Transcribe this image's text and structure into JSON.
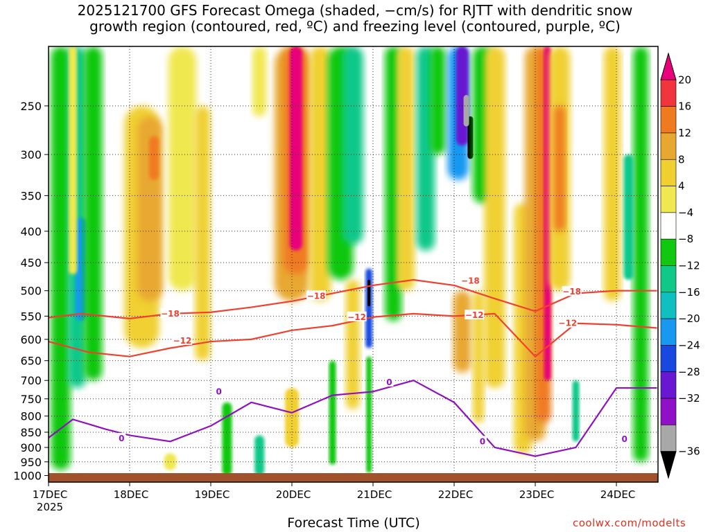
{
  "chart_data": {
    "type": "heatmap",
    "title_line1": "2025121700 GFS Forecast Omega (shaded, −cm/s) for RJTT with dendritic snow",
    "title_line2": "growth region (contoured, red, ºC) and freezing level (contoured, purple, ºC)",
    "xlabel": "Forecast Time (UTC)",
    "ylabel": "",
    "credit": "coolwx.com/modelts",
    "x_ticks": [
      "17DEC",
      "18DEC",
      "19DEC",
      "20DEC",
      "21DEC",
      "22DEC",
      "23DEC",
      "24DEC"
    ],
    "x_year": "2025",
    "y_ticks": [
      250,
      300,
      350,
      400,
      450,
      500,
      550,
      600,
      650,
      700,
      750,
      800,
      850,
      900,
      950,
      1000
    ],
    "y_range_hpa": [
      1025,
      200
    ],
    "x_range_days": [
      0,
      7.5
    ],
    "colorbar": {
      "labels": [
        "20",
        "16",
        "12",
        "8",
        "4",
        "−4",
        "−8",
        "−12",
        "−16",
        "−20",
        "−24",
        "−28",
        "−32",
        "−36"
      ],
      "colors": [
        "#e8007a",
        "#f0363c",
        "#f07a20",
        "#e8a830",
        "#f0d030",
        "#f0e850",
        "#ffffff",
        "#10c810",
        "#10c888",
        "#10c0c0",
        "#1898f0",
        "#1848e0",
        "#6818d0",
        "#9010c8",
        "#a8a8a8",
        "#000000"
      ]
    },
    "contours": {
      "red_labels": [
        "−18",
        "−12",
        "−18",
        "−12",
        "−18",
        "−12",
        "−18",
        "−12"
      ],
      "purple_labels": [
        "0",
        "0",
        "0",
        "0",
        "0"
      ]
    },
    "series": [
      {
        "name": "-18C isotherm (hPa)",
        "color": "#f04030",
        "x": [
          0,
          0.4,
          1.0,
          1.5,
          2.0,
          2.5,
          3.0,
          3.5,
          4.0,
          4.5,
          5.0,
          5.5,
          6.0,
          6.5,
          7.0,
          7.5
        ],
        "y": [
          553,
          545,
          555,
          545,
          542,
          532,
          520,
          505,
          490,
          480,
          490,
          515,
          540,
          505,
          500,
          500
        ]
      },
      {
        "name": "-12C isotherm (hPa)",
        "color": "#f04030",
        "x": [
          0,
          0.5,
          1.0,
          1.5,
          2.0,
          2.5,
          3.0,
          3.5,
          4.0,
          4.5,
          5.0,
          5.5,
          6.0,
          6.5,
          7.0,
          7.5
        ],
        "y": [
          605,
          630,
          640,
          620,
          605,
          600,
          580,
          570,
          552,
          545,
          550,
          545,
          640,
          565,
          568,
          575
        ]
      },
      {
        "name": "0C freezing level (hPa)",
        "color": "#9010c0",
        "x": [
          0,
          0.3,
          0.7,
          1.0,
          1.5,
          2.0,
          2.5,
          3.0,
          3.5,
          4.0,
          4.5,
          5.0,
          5.5,
          6.0,
          6.5,
          7.0,
          7.5
        ],
        "y": [
          868,
          810,
          840,
          860,
          880,
          830,
          760,
          790,
          740,
          730,
          700,
          760,
          900,
          930,
          900,
          720,
          720
        ]
      }
    ]
  }
}
